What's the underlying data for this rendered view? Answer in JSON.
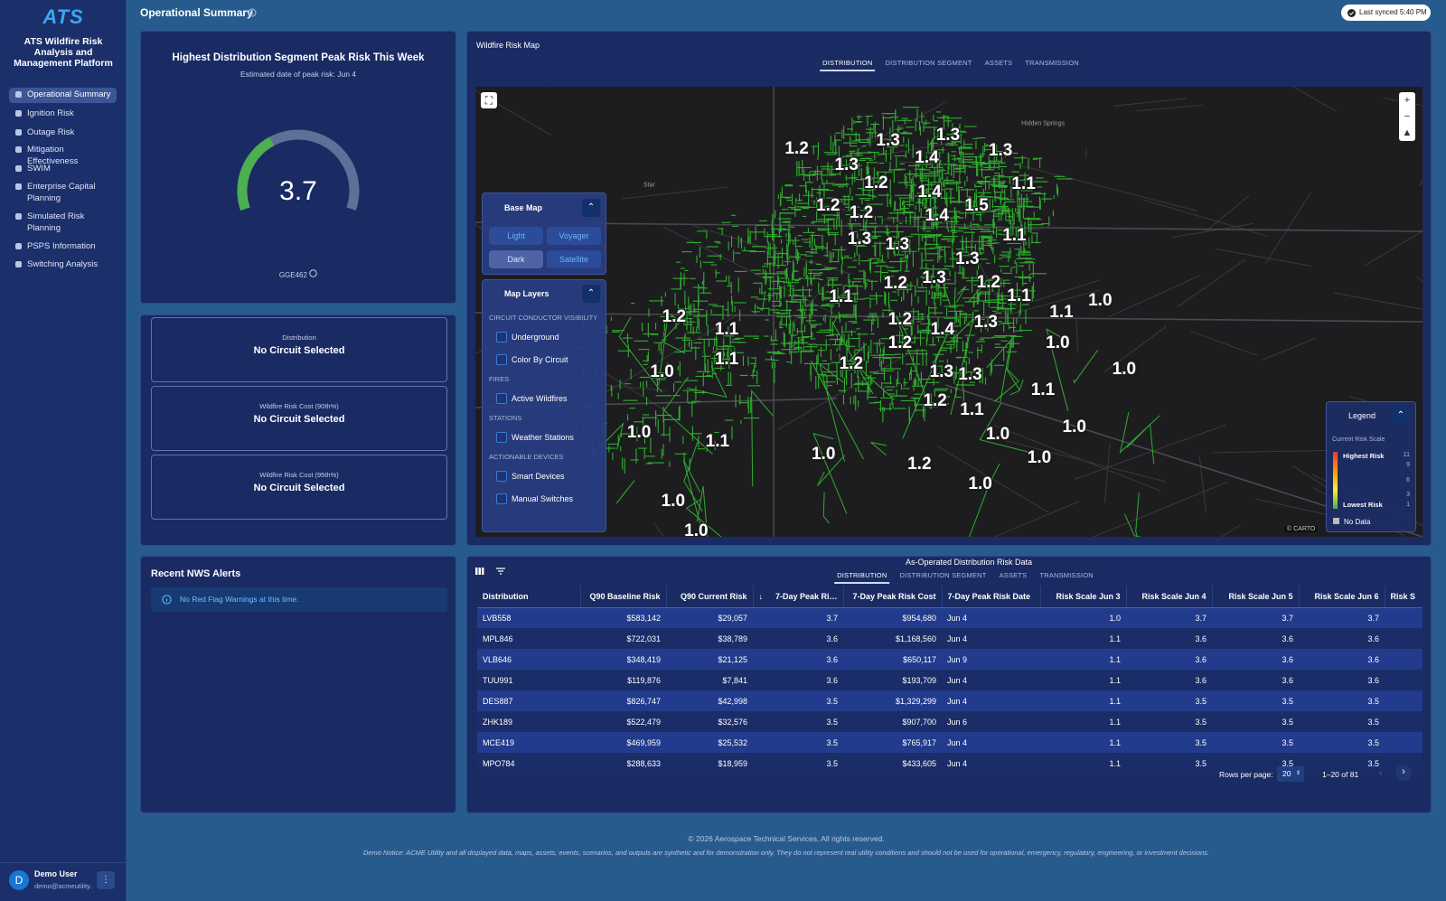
{
  "sidebar": {
    "logo": "ATS",
    "app_title": "ATS Wildfire Risk Analysis and Management Platform",
    "nav": [
      "Operational Summary",
      "Ignition Risk",
      "Outage Risk",
      "Mitigation Effectiveness",
      "SWIM",
      "Enterprise Capital Planning",
      "Simulated Risk Planning",
      "PSPS Information",
      "Switching Analysis"
    ],
    "active_nav": 0,
    "user": {
      "avatar": "D",
      "name": "Demo User",
      "email": "demo@acmeutility."
    }
  },
  "header": {
    "title": "Operational Summary",
    "sync": "Last synced 5:40 PM"
  },
  "peak_risk": {
    "title": "Highest Distribution Segment Peak Risk This Week",
    "subtitle": "Estimated date of peak risk: Jun 4",
    "value": 3.7,
    "gauge_lim": [
      0,
      10
    ],
    "circuit": "GGE462"
  },
  "circuit_cards": [
    {
      "label": "Distribution",
      "value": "No Circuit Selected"
    },
    {
      "label": "Wildfire Risk Cost (90th%)",
      "value": "No Circuit Selected"
    },
    {
      "label": "Wildfire Risk Cost (95th%)",
      "value": "No Circuit Selected"
    }
  ],
  "alerts": {
    "title": "Recent NWS Alerts",
    "message": "No Red Flag Warnings at this time."
  },
  "map": {
    "title": "Wildfire Risk Map",
    "tabs": [
      "DISTRIBUTION",
      "DISTRIBUTION SEGMENT",
      "ASSETS",
      "TRANSMISSION"
    ],
    "active_tab": 0,
    "base_map": {
      "title": "Base Map",
      "options": [
        "Light",
        "Voyager",
        "Dark",
        "Satellite"
      ],
      "selected": 2
    },
    "layers": {
      "title": "Map Layers",
      "groups": [
        {
          "name": "CIRCUIT CONDUCTOR VISIBILITY",
          "items": [
            "Underground",
            "Color By Circuit"
          ]
        },
        {
          "name": "FIRES",
          "items": [
            "Active Wildfires"
          ]
        },
        {
          "name": "STATIONS",
          "items": [
            "Weather Stations"
          ]
        },
        {
          "name": "ACTIONABLE DEVICES",
          "items": [
            "Smart Devices",
            "Manual Switches"
          ]
        }
      ]
    },
    "place_names": [
      "Star",
      "Hidden Springs"
    ],
    "risk_labels": [
      "1.2",
      "1.3",
      "1.3",
      "1.3",
      "1.3",
      "1.4",
      "1.2",
      "1.1",
      "1.4",
      "1.2",
      "1.2",
      "1.5",
      "1.4",
      "1.1",
      "1.3",
      "1.3",
      "1.3",
      "1.2",
      "1.3",
      "1.2",
      "1.1",
      "1.1",
      "1.0",
      "1.2",
      "1.1",
      "1.2",
      "1.4",
      "1.3",
      "1.1",
      "1.2",
      "1.0",
      "1.1",
      "1.2",
      "1.0",
      "1.3",
      "1.3",
      "1.0",
      "1.1",
      "1.2",
      "1.1",
      "1.0",
      "1.0",
      "1.0",
      "1.1",
      "1.0",
      "1.0",
      "1.2",
      "1.0",
      "1.0",
      "1.0"
    ],
    "legend": {
      "title": "Legend",
      "subtitle": "Current Risk Scale",
      "high": "Highest Risk",
      "low": "Lowest Risk",
      "ticks": [
        11,
        9,
        6,
        3,
        1
      ],
      "no_data": "No Data"
    },
    "attribution": "© CARTO"
  },
  "risk_table": {
    "title": "As-Operated Distribution Risk Data",
    "tabs": [
      "DISTRIBUTION",
      "DISTRIBUTION SEGMENT",
      "ASSETS",
      "TRANSMISSION"
    ],
    "active_tab": 0,
    "columns": [
      "Distribution",
      "Q90 Baseline Risk",
      "Q90 Current Risk",
      "7-Day Peak Ri…",
      "7-Day Peak Risk Cost",
      "7-Day Peak Risk Date",
      "Risk Scale Jun 3",
      "Risk Scale Jun 4",
      "Risk Scale Jun 5",
      "Risk Scale Jun 6",
      "Risk S"
    ],
    "sort_column": 3,
    "rows": [
      [
        "LVB558",
        "$583,142",
        "$29,057",
        "3.7",
        "$954,680",
        "Jun 4",
        "1.0",
        "3.7",
        "3.7",
        "3.7"
      ],
      [
        "MPL846",
        "$722,031",
        "$38,789",
        "3.6",
        "$1,168,560",
        "Jun 4",
        "1.1",
        "3.6",
        "3.6",
        "3.6"
      ],
      [
        "VLB646",
        "$348,419",
        "$21,125",
        "3.6",
        "$650,117",
        "Jun 9",
        "1.1",
        "3.6",
        "3.6",
        "3.6"
      ],
      [
        "TUU991",
        "$119,876",
        "$7,841",
        "3.6",
        "$193,709",
        "Jun 4",
        "1.1",
        "3.6",
        "3.6",
        "3.6"
      ],
      [
        "DES887",
        "$826,747",
        "$42,998",
        "3.5",
        "$1,329,299",
        "Jun 4",
        "1.1",
        "3.5",
        "3.5",
        "3.5"
      ],
      [
        "ZHK189",
        "$522,479",
        "$32,576",
        "3.5",
        "$907,700",
        "Jun 6",
        "1.1",
        "3.5",
        "3.5",
        "3.5"
      ],
      [
        "MCE419",
        "$469,959",
        "$25,532",
        "3.5",
        "$765,917",
        "Jun 4",
        "1.1",
        "3.5",
        "3.5",
        "3.5"
      ],
      [
        "MPO784",
        "$288,633",
        "$18,959",
        "3.5",
        "$433,605",
        "Jun 4",
        "1.1",
        "3.5",
        "3.5",
        "3.5"
      ]
    ],
    "rows_per_page_label": "Rows per page:",
    "rows_per_page": 20,
    "range": "1–20 of 81"
  },
  "footer": {
    "copyright": "© 2026 Aerospace Technical Services. All rights reserved.",
    "notice": "Demo Notice: ACME Utility and all displayed data, maps, assets, events, scenarios, and outputs are synthetic and for demonstration only. They do not represent real utility conditions and should not be used for operational, emergency, regulatory, engineering, or investment decisions."
  }
}
